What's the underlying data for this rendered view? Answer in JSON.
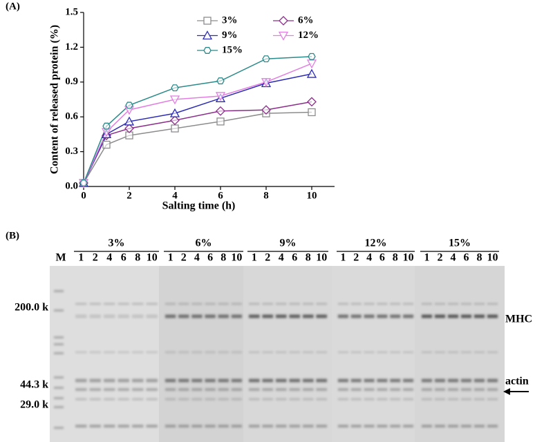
{
  "panels": [
    "(A)",
    "(B)"
  ],
  "chart_data": {
    "type": "line",
    "x_label": "Salting time (h)",
    "y_label": "Content of released protein (%)",
    "x": [
      0,
      1,
      2,
      4,
      6,
      8,
      10
    ],
    "series": [
      {
        "name": "3%",
        "color": "#8c8c8c",
        "marker": "square",
        "values": [
          0.03,
          0.36,
          0.44,
          0.5,
          0.56,
          0.63,
          0.64
        ]
      },
      {
        "name": "6%",
        "color": "#8b2d8b",
        "marker": "diamond",
        "values": [
          0.03,
          0.44,
          0.5,
          0.57,
          0.65,
          0.66,
          0.73
        ]
      },
      {
        "name": "9%",
        "color": "#2b2bb5",
        "marker": "triangle-up",
        "values": [
          0.03,
          0.45,
          0.56,
          0.63,
          0.76,
          0.89,
          0.97
        ]
      },
      {
        "name": "12%",
        "color": "#e27ee2",
        "marker": "triangle-down",
        "values": [
          0.03,
          0.47,
          0.66,
          0.75,
          0.78,
          0.9,
          1.06
        ]
      },
      {
        "name": "15%",
        "color": "#2a8a8a",
        "marker": "hexagon",
        "values": [
          0.03,
          0.52,
          0.7,
          0.85,
          0.91,
          1.1,
          1.12
        ]
      }
    ],
    "xlim": [
      0,
      11
    ],
    "xticks": [
      0,
      2,
      4,
      6,
      8,
      10
    ],
    "ylim": [
      0,
      1.5
    ],
    "yticks": [
      {
        "value": 0,
        "label": "0.0"
      },
      0.3,
      0.6,
      0.9,
      1.2,
      1.5
    ],
    "grid": false,
    "legend": "top"
  },
  "gel": {
    "marker_lane": "M",
    "groups": [
      {
        "label": "3%",
        "lanes": [
          "1",
          "2",
          "4",
          "6",
          "8",
          "10"
        ]
      },
      {
        "label": "6%",
        "lanes": [
          "1",
          "2",
          "4",
          "6",
          "8",
          "10"
        ]
      },
      {
        "label": "9%",
        "lanes": [
          "1",
          "2",
          "4",
          "6",
          "8",
          "10"
        ]
      },
      {
        "label": "12%",
        "lanes": [
          "1",
          "2",
          "4",
          "6",
          "8",
          "10"
        ]
      },
      {
        "label": "15%",
        "lanes": [
          "1",
          "2",
          "4",
          "6",
          "8",
          "10"
        ]
      }
    ],
    "markers": [
      "200.0 k",
      "44.3 k",
      "29.0 k"
    ],
    "annotations": [
      "MHC",
      "actin"
    ]
  }
}
